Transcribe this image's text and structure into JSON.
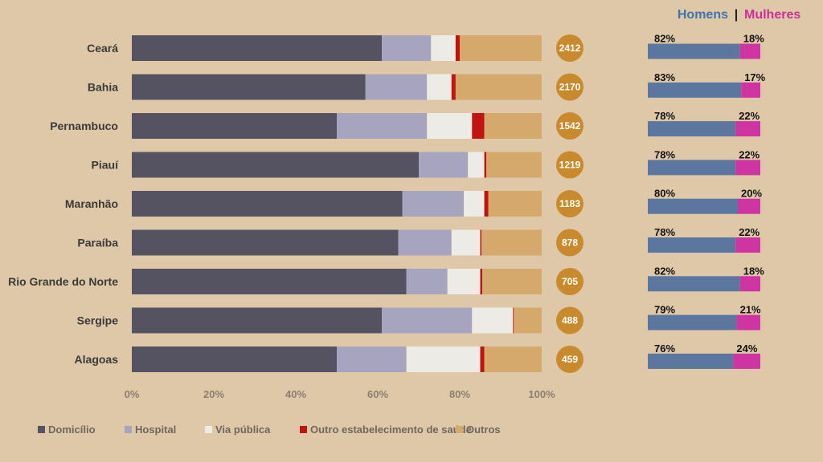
{
  "chart_data": [
    {
      "type": "bar",
      "orientation": "horizontal",
      "stacked": "100%",
      "categories": [
        "Ceará",
        "Bahia",
        "Pernambuco",
        "Piauí",
        "Maranhão",
        "Paraíba",
        "Rio Grande do Norte",
        "Sergipe",
        "Alagoas"
      ],
      "series": [
        {
          "name": "Domicílio",
          "color": "#555361",
          "values": [
            61,
            57,
            50,
            70,
            66,
            65,
            67,
            61,
            50
          ]
        },
        {
          "name": "Hospital",
          "color": "#a7a4c0",
          "values": [
            12,
            15,
            22,
            12,
            15,
            13,
            10,
            22,
            17
          ]
        },
        {
          "name": "Via pública",
          "color": "#ecebe6",
          "values": [
            6,
            6,
            11,
            4,
            5,
            7,
            8,
            10,
            18
          ]
        },
        {
          "name": "Outro estabelecimento de saúde",
          "color": "#c1130f",
          "values": [
            1,
            1,
            3,
            0.5,
            1,
            0.3,
            0.5,
            0.2,
            1
          ]
        },
        {
          "name": "Outros",
          "color": "#d5a96b",
          "values": [
            20,
            21,
            14,
            13.5,
            13,
            14.7,
            14.5,
            6.8,
            14
          ]
        }
      ],
      "totals": [
        "2412",
        "2170",
        "1542",
        "1219",
        "1183",
        "878",
        "705",
        "488",
        "459"
      ],
      "totals_color": "#c98a2e",
      "xlim": [
        0,
        100
      ],
      "x_ticks": [
        "0%",
        "20%",
        "40%",
        "60%",
        "80%",
        "100%"
      ],
      "legend_position": "bottom"
    },
    {
      "type": "bar",
      "orientation": "horizontal",
      "stacked": "100%",
      "categories": [
        "Ceará",
        "Bahia",
        "Pernambuco",
        "Piauí",
        "Maranhão",
        "Paraíba",
        "Rio Grande do Norte",
        "Sergipe",
        "Alagoas"
      ],
      "legend_title": {
        "men": "Homens",
        "separator": "|",
        "women": "Mulheres"
      },
      "series": [
        {
          "name": "Homens",
          "color": "#5b77a0",
          "title_color": "#3f74ad",
          "values": [
            82,
            83,
            78,
            78,
            80,
            78,
            82,
            79,
            76
          ]
        },
        {
          "name": "Mulheres",
          "color": "#cf35a2",
          "title_color": "#cc2f9c",
          "values": [
            18,
            17,
            22,
            22,
            20,
            22,
            18,
            21,
            24
          ]
        }
      ],
      "value_labels_men": [
        "82%",
        "83%",
        "78%",
        "78%",
        "80%",
        "78%",
        "82%",
        "79%",
        "76%"
      ],
      "value_labels_women": [
        "18%",
        "17%",
        "22%",
        "22%",
        "20%",
        "22%",
        "18%",
        "21%",
        "24%"
      ],
      "legend_position": "top-right"
    }
  ]
}
